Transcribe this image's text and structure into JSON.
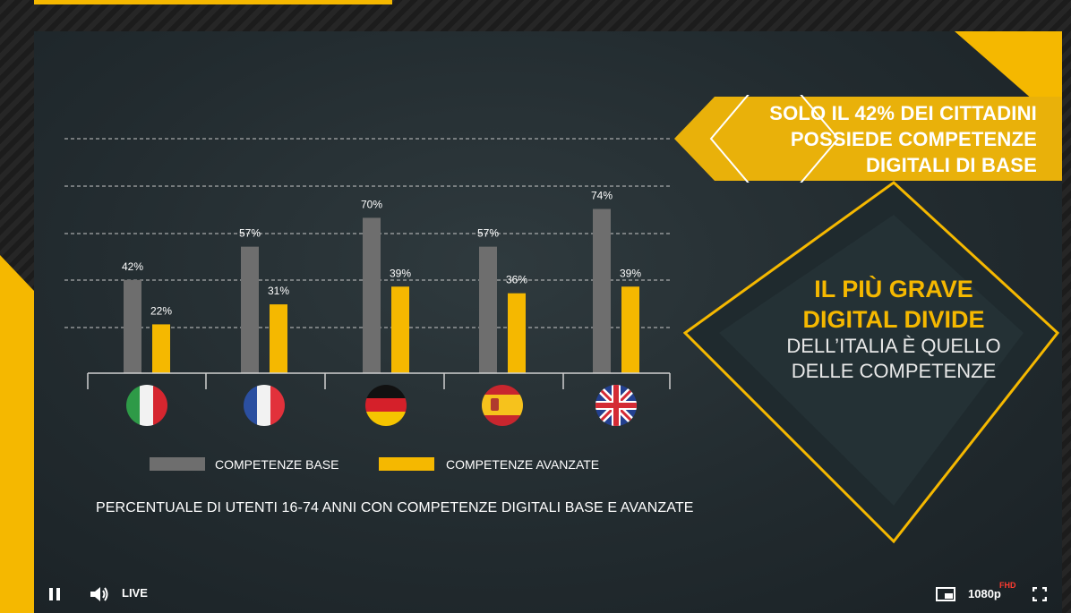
{
  "headline": {
    "line1": "SOLO IL 42% DEI CITTADINI",
    "line2": "POSSIEDE COMPETENZE",
    "line3": "DIGITALI DI BASE"
  },
  "diamond": {
    "title_line1": "IL PIÙ GRAVE",
    "title_line2": "DIGITAL DIVIDE",
    "subtitle_line1": "DELL’ITALIA È QUELLO",
    "subtitle_line2": "DELLE COMPETENZE"
  },
  "caption": "PERCENTUALE DI UTENTI 16-74 ANNI CON COMPETENZE DIGITALI BASE E AVANZATE",
  "colors": {
    "accent": "#f5b800",
    "base_bar": "#6e6e6e",
    "background": "#242d31"
  },
  "chart_data": {
    "type": "bar",
    "categories": [
      "Italy",
      "France",
      "Germany",
      "Spain",
      "United Kingdom"
    ],
    "category_icons": [
      "italy-flag-icon",
      "france-flag-icon",
      "germany-flag-icon",
      "spain-flag-icon",
      "uk-flag-icon"
    ],
    "series": [
      {
        "name": "COMPETENZE BASE",
        "values": [
          42,
          57,
          70,
          57,
          74
        ],
        "labels": [
          "42%",
          "57%",
          "70%",
          "57%",
          "74%"
        ],
        "color": "#6e6e6e"
      },
      {
        "name": "COMPETENZE AVANZATE",
        "values": [
          22,
          31,
          39,
          36,
          39
        ],
        "labels": [
          "22%",
          "31%",
          "39%",
          "36%",
          "39%"
        ],
        "color": "#f5b800"
      }
    ],
    "ylim": [
      0,
      100
    ],
    "grid": "dashed horizontal",
    "legend_position": "bottom"
  },
  "player": {
    "live_label": "LIVE",
    "quality_label": "1080p",
    "quality_badge": "FHD",
    "icons": [
      "pause-icon",
      "volume-icon",
      "pip-icon",
      "fullscreen-icon"
    ]
  }
}
